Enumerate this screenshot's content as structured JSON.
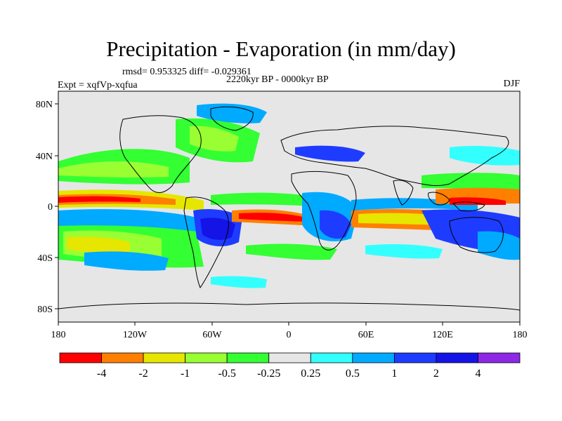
{
  "title": "Precipitation - Evaporation (in mm/day)",
  "stats_line": "rmsd= 0.953325 diff= -0.029361",
  "period_line": "2220kyr BP - 0000kyr BP",
  "experiment_line": "Expt = xqfVp-xqfua",
  "season_label": "DJF",
  "lat_ticks": [
    "80N",
    "40N",
    "0",
    "40S",
    "80S"
  ],
  "lon_ticks": [
    "180",
    "120W",
    "60W",
    "0",
    "60E",
    "120E",
    "180"
  ],
  "colorbar": {
    "labels": [
      "-4",
      "-2",
      "-1",
      "-0.5",
      "-0.25",
      "0.25",
      "0.5",
      "1",
      "2",
      "4"
    ],
    "colors": [
      "#ff0000",
      "#ff8000",
      "#e6e600",
      "#99ff33",
      "#33ff33",
      "#e6e6e6",
      "#33ffff",
      "#00aaff",
      "#1e3cff",
      "#1414e6",
      "#8c28e6"
    ]
  },
  "colors": {
    "land_bg": "#e6e6e6",
    "coastline": "#000000"
  }
}
